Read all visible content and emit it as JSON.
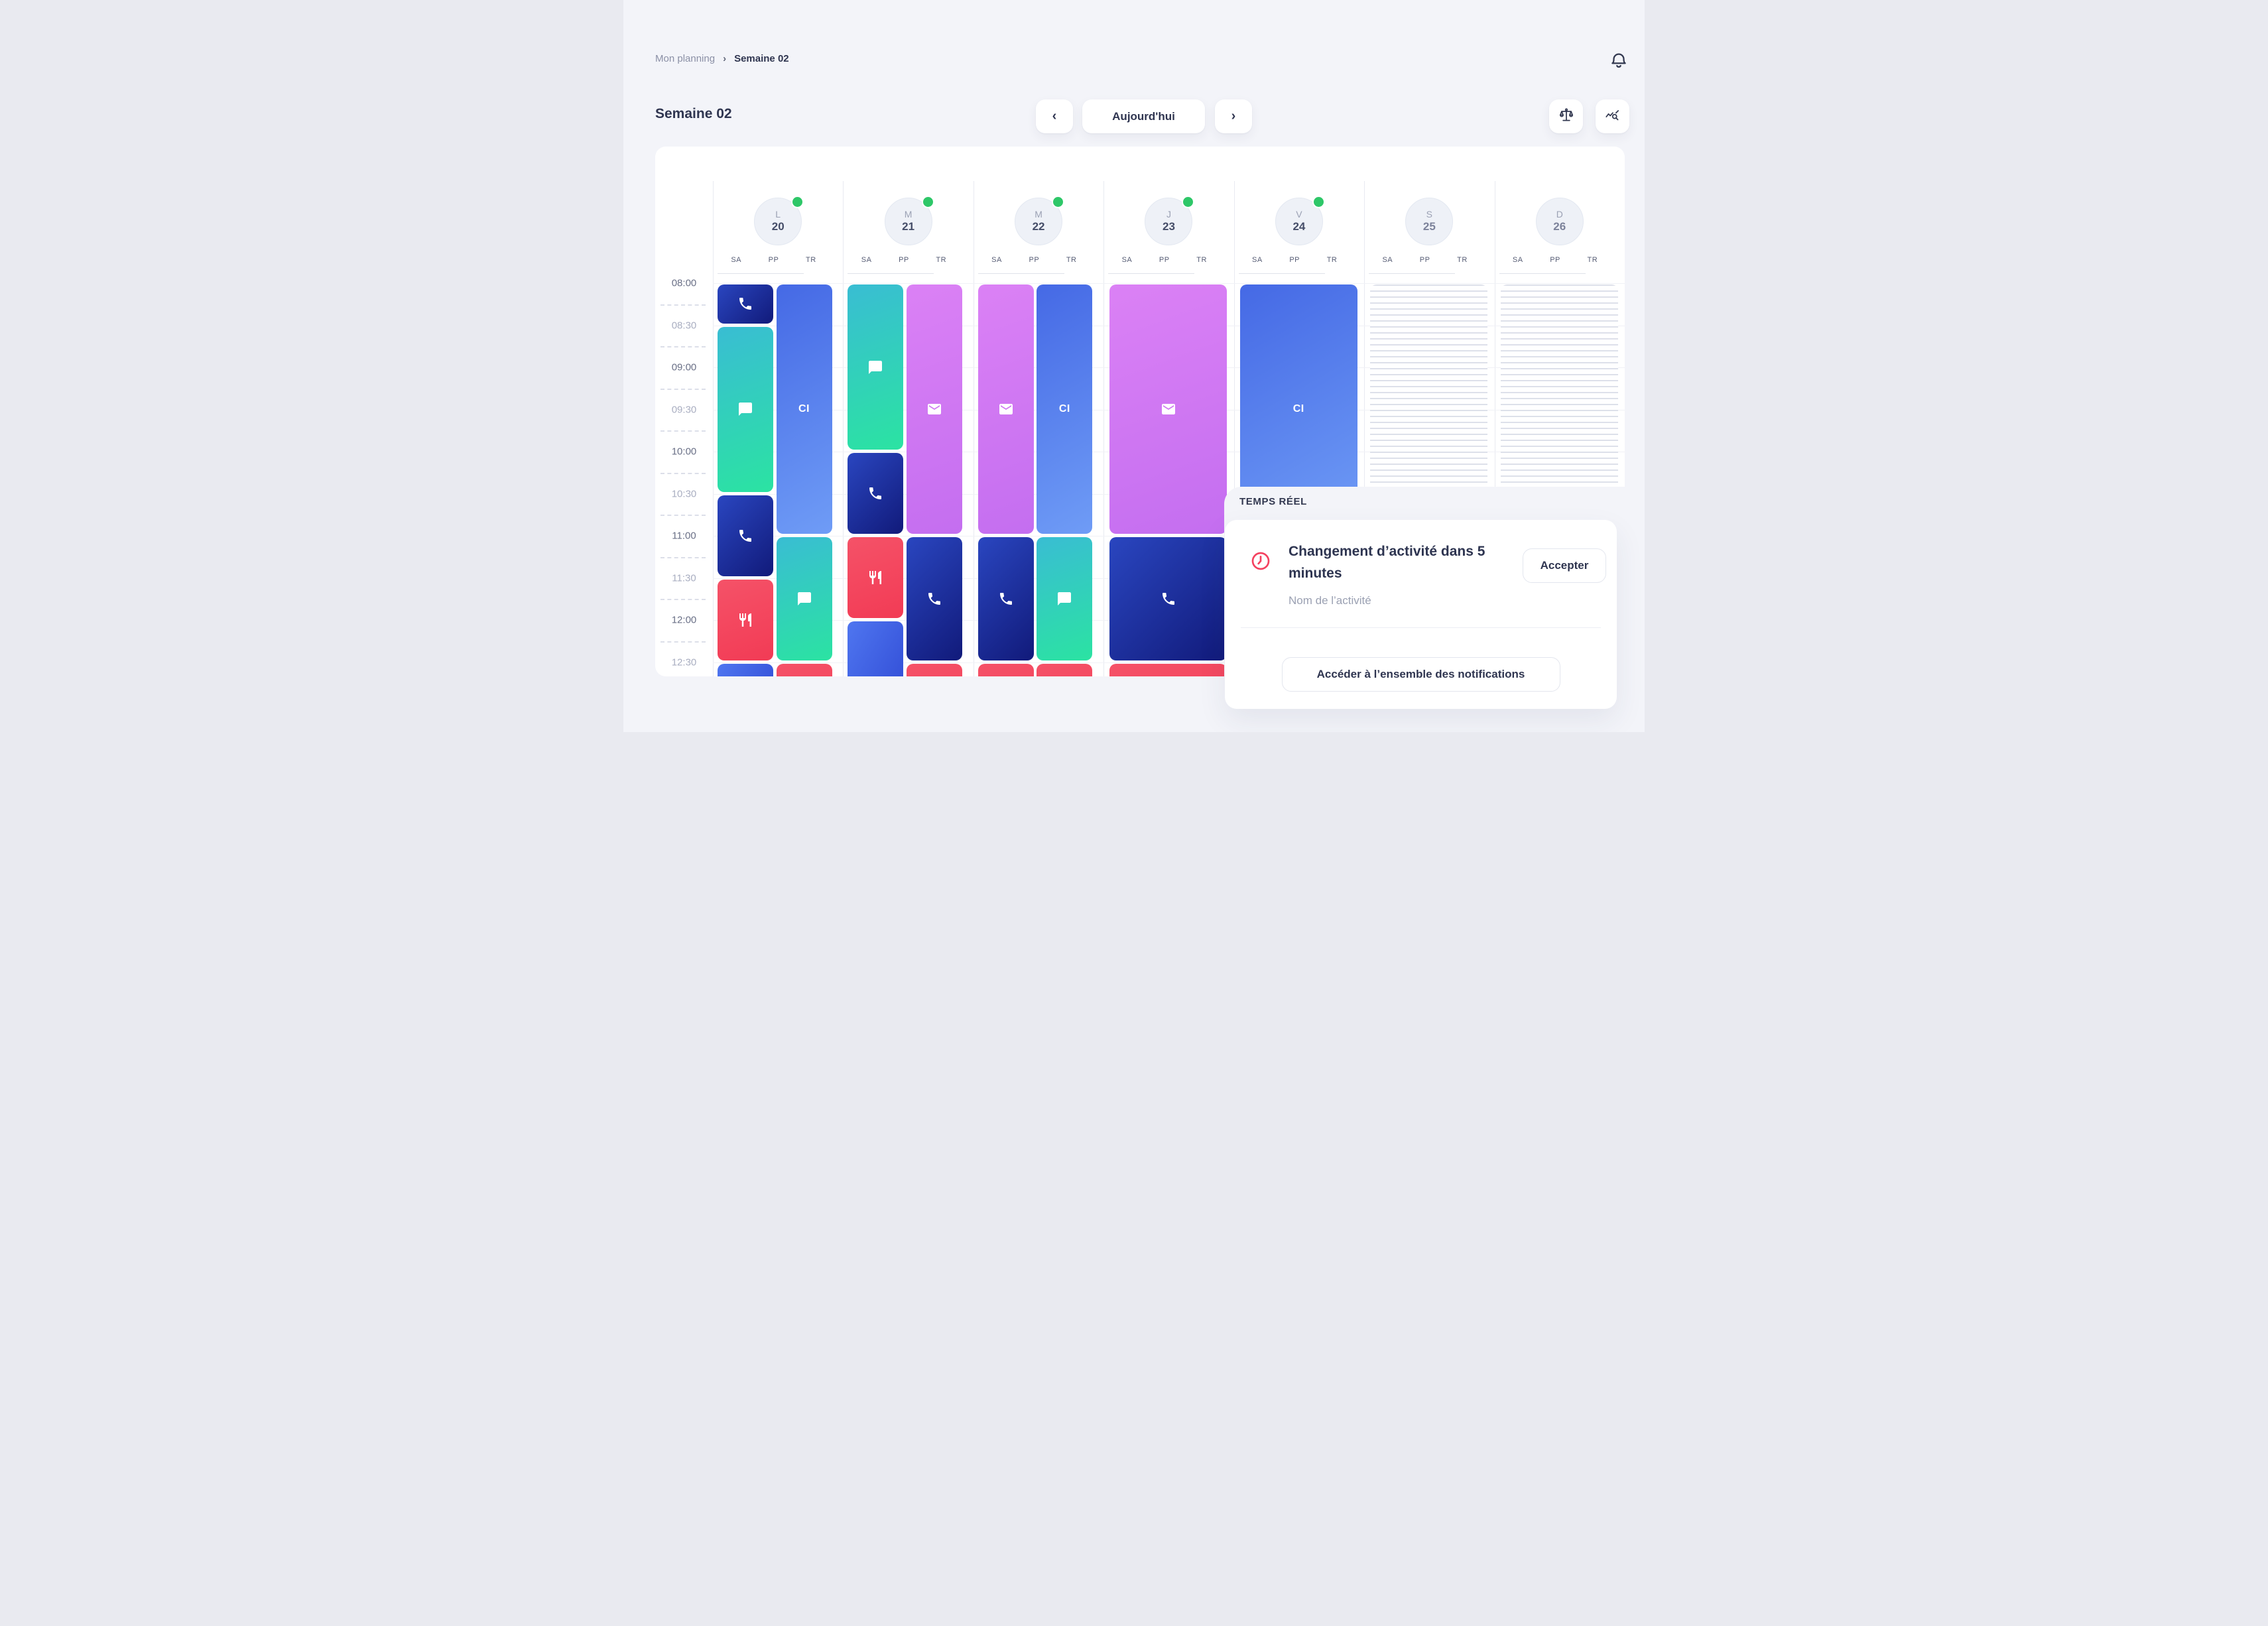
{
  "breadcrumb": {
    "parent": "Mon planning",
    "separator": "›",
    "current": "Semaine 02"
  },
  "header": {
    "title": "Semaine 02",
    "today_label": "Aujourd'hui",
    "prev_label": "‹",
    "next_label": "›"
  },
  "toolbar_icons": {
    "bell": "bell-icon",
    "balance": "scales-icon",
    "analytics": "chart-search-icon"
  },
  "calendar": {
    "sublabels": [
      "SA",
      "PP",
      "TR"
    ],
    "times": [
      {
        "label": "08:00",
        "strong": true
      },
      {
        "label": "08:30",
        "strong": false
      },
      {
        "label": "09:00",
        "strong": true
      },
      {
        "label": "09:30",
        "strong": false
      },
      {
        "label": "10:00",
        "strong": true
      },
      {
        "label": "10:30",
        "strong": false
      },
      {
        "label": "11:00",
        "strong": true
      },
      {
        "label": "11:30",
        "strong": false
      },
      {
        "label": "12:00",
        "strong": true
      },
      {
        "label": "12:30",
        "strong": false
      }
    ],
    "days": [
      {
        "letter": "L",
        "number": "20",
        "active": true
      },
      {
        "letter": "M",
        "number": "21",
        "active": true
      },
      {
        "letter": "M",
        "number": "22",
        "active": true
      },
      {
        "letter": "J",
        "number": "23",
        "active": true
      },
      {
        "letter": "V",
        "number": "24",
        "active": true
      },
      {
        "letter": "S",
        "number": "25",
        "active": false
      },
      {
        "letter": "D",
        "number": "26",
        "active": false
      }
    ],
    "ci_label": "CI",
    "events": [
      {
        "day": 0,
        "col": "sa",
        "start": 0,
        "end": 30,
        "kind": "phone",
        "palette": "navy"
      },
      {
        "day": 0,
        "col": "sa",
        "start": 30,
        "end": 150,
        "kind": "chat",
        "palette": "teal"
      },
      {
        "day": 0,
        "col": "sa",
        "start": 150,
        "end": 210,
        "kind": "phone",
        "palette": "navy"
      },
      {
        "day": 0,
        "col": "sa",
        "start": 210,
        "end": 270,
        "kind": "lunch",
        "palette": "red"
      },
      {
        "day": 0,
        "col": "sa",
        "start": 270,
        "end": 330,
        "kind": "block",
        "palette": "blue"
      },
      {
        "day": 0,
        "col": "pp",
        "start": 0,
        "end": 180,
        "kind": "ci",
        "palette": "royal"
      },
      {
        "day": 0,
        "col": "pp",
        "start": 180,
        "end": 270,
        "kind": "chat",
        "palette": "teal"
      },
      {
        "day": 0,
        "col": "pp",
        "start": 270,
        "end": 330,
        "kind": "block",
        "palette": "red"
      },
      {
        "day": 1,
        "col": "sa",
        "start": 0,
        "end": 120,
        "kind": "chat",
        "palette": "teal"
      },
      {
        "day": 1,
        "col": "sa",
        "start": 120,
        "end": 180,
        "kind": "phone",
        "palette": "navy"
      },
      {
        "day": 1,
        "col": "sa",
        "start": 180,
        "end": 240,
        "kind": "lunch",
        "palette": "red"
      },
      {
        "day": 1,
        "col": "sa",
        "start": 240,
        "end": 330,
        "kind": "block",
        "palette": "blue"
      },
      {
        "day": 1,
        "col": "pp",
        "start": 0,
        "end": 180,
        "kind": "mail",
        "palette": "violet"
      },
      {
        "day": 1,
        "col": "pp",
        "start": 180,
        "end": 270,
        "kind": "phone",
        "palette": "navy"
      },
      {
        "day": 1,
        "col": "pp",
        "start": 270,
        "end": 330,
        "kind": "block",
        "palette": "red"
      },
      {
        "day": 2,
        "col": "sa",
        "start": 0,
        "end": 180,
        "kind": "mail",
        "palette": "violet"
      },
      {
        "day": 2,
        "col": "sa",
        "start": 180,
        "end": 270,
        "kind": "phone",
        "palette": "navy"
      },
      {
        "day": 2,
        "col": "sa",
        "start": 270,
        "end": 330,
        "kind": "block",
        "palette": "red"
      },
      {
        "day": 2,
        "col": "pp",
        "start": 0,
        "end": 180,
        "kind": "ci",
        "palette": "royal"
      },
      {
        "day": 2,
        "col": "pp",
        "start": 180,
        "end": 270,
        "kind": "chat",
        "palette": "teal"
      },
      {
        "day": 2,
        "col": "pp",
        "start": 270,
        "end": 330,
        "kind": "block",
        "palette": "red"
      },
      {
        "day": 3,
        "col": "wide",
        "start": 0,
        "end": 180,
        "kind": "mail",
        "palette": "violet"
      },
      {
        "day": 3,
        "col": "wide",
        "start": 180,
        "end": 270,
        "kind": "phone",
        "palette": "navy"
      },
      {
        "day": 3,
        "col": "wide",
        "start": 270,
        "end": 330,
        "kind": "block",
        "palette": "red"
      },
      {
        "day": 4,
        "col": "wide",
        "start": 0,
        "end": 180,
        "kind": "ci",
        "palette": "royal"
      },
      {
        "day": 5,
        "col": "wide",
        "start": 0,
        "end": 330,
        "kind": "stripes",
        "palette": "stripes"
      },
      {
        "day": 6,
        "col": "wide",
        "start": 0,
        "end": 330,
        "kind": "stripes",
        "palette": "stripes"
      }
    ]
  },
  "notification": {
    "section_label": "TEMPS RÉEL",
    "title": "Changement d’activité dans 5 minutes",
    "subtitle": "Nom de l’activité",
    "accept_label": "Accepter",
    "all_label": "Accéder à l’ensemble des notifications",
    "clock_icon": "clock-icon"
  },
  "colors": {
    "page_bg": "#f3f4f9",
    "accent_green": "#2ec768",
    "alert_red": "#f4415f",
    "text_dark": "#2f3550",
    "palette_navy": "linear-gradient(135deg,#2a46c0,#111a7a)",
    "palette_teal": "linear-gradient(160deg,#39bdd3,#2be3a2)",
    "palette_royal": "linear-gradient(150deg,#4569e5,#6f9cf6)",
    "palette_violet": "linear-gradient(160deg,#db81f5,#c46ef0)",
    "palette_red": "linear-gradient(160deg,#f55268,#f23b55)",
    "palette_blue": "linear-gradient(120deg,#4f76f0,#2a42cf)"
  }
}
